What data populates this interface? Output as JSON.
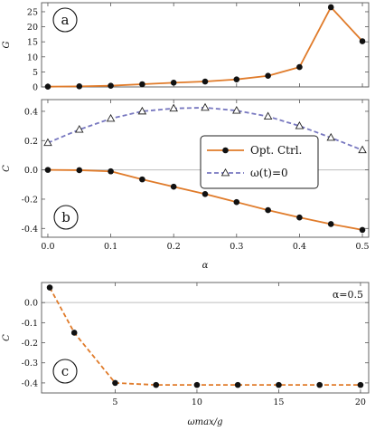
{
  "colors": {
    "orange": "#e07b2a",
    "blue": "#7878c0",
    "marker": "#111111",
    "zero_line": "#bdbdbd"
  },
  "chart_data": [
    {
      "panel": "a",
      "type": "line",
      "ylabel": "G",
      "xlim": [
        -0.01,
        0.51
      ],
      "ylim": [
        0,
        28
      ],
      "xticks": [
        0.0,
        0.1,
        0.2,
        0.3,
        0.4,
        0.5
      ],
      "yticks": [
        0,
        5,
        10,
        15,
        20,
        25
      ],
      "ytick_labels": [
        "0",
        "5",
        "10",
        "15",
        "20",
        "25"
      ],
      "xtick_labels_visible": false,
      "series": [
        {
          "style": "solid-orange-dots",
          "x": [
            0.0,
            0.05,
            0.1,
            0.15,
            0.2,
            0.25,
            0.3,
            0.35,
            0.4,
            0.45,
            0.5
          ],
          "y": [
            0.1,
            0.2,
            0.4,
            0.9,
            1.4,
            1.8,
            2.5,
            3.7,
            6.6,
            26.5,
            15.2
          ]
        }
      ]
    },
    {
      "panel": "b",
      "type": "line",
      "xlabel": "α",
      "ylabel": "C",
      "xlim": [
        -0.01,
        0.51
      ],
      "ylim": [
        -0.46,
        0.48
      ],
      "xticks": [
        0.0,
        0.1,
        0.2,
        0.3,
        0.4,
        0.5
      ],
      "xtick_labels": [
        "0.0",
        "0.1",
        "0.2",
        "0.3",
        "0.4",
        "0.5"
      ],
      "yticks": [
        -0.4,
        -0.2,
        0.0,
        0.2,
        0.4
      ],
      "ytick_labels": [
        "-0.4",
        "-0.2",
        "0.0",
        "0.2",
        "0.4"
      ],
      "legend": {
        "placement": "center-right",
        "entries": [
          "Opt. Ctrl.",
          "ω(t)=0"
        ]
      },
      "series": [
        {
          "name": "Opt. Ctrl.",
          "style": "solid-orange-dots",
          "x": [
            0.0,
            0.05,
            0.1,
            0.15,
            0.2,
            0.25,
            0.3,
            0.35,
            0.4,
            0.45,
            0.5
          ],
          "y": [
            0.0,
            -0.002,
            -0.01,
            -0.065,
            -0.115,
            -0.165,
            -0.22,
            -0.275,
            -0.325,
            -0.37,
            -0.41
          ]
        },
        {
          "name": "ω(t)=0",
          "style": "dashed-blue-triangles",
          "x": [
            0.0,
            0.05,
            0.1,
            0.15,
            0.2,
            0.25,
            0.3,
            0.35,
            0.4,
            0.45,
            0.5
          ],
          "y": [
            0.185,
            0.275,
            0.35,
            0.4,
            0.42,
            0.425,
            0.405,
            0.365,
            0.3,
            0.22,
            0.135
          ]
        }
      ]
    },
    {
      "panel": "c",
      "type": "line",
      "xlabel": "ωmax/g",
      "ylabel": "C",
      "annotation": "α=0.5",
      "xlim": [
        0.5,
        20.5
      ],
      "ylim": [
        -0.45,
        0.1
      ],
      "xticks": [
        5,
        10,
        15,
        20
      ],
      "xtick_labels": [
        "5",
        "10",
        "15",
        "20"
      ],
      "yticks": [
        -0.4,
        -0.3,
        -0.2,
        -0.1,
        0.0
      ],
      "ytick_labels": [
        "-0.4",
        "-0.3",
        "-0.2",
        "-0.1",
        "0.0"
      ],
      "series": [
        {
          "style": "dashed-orange-dots",
          "x": [
            1,
            2.5,
            5,
            7.5,
            10,
            12.5,
            15,
            17.5,
            20
          ],
          "y": [
            0.075,
            -0.15,
            -0.4,
            -0.41,
            -0.41,
            -0.41,
            -0.41,
            -0.41,
            -0.41
          ]
        }
      ]
    }
  ]
}
